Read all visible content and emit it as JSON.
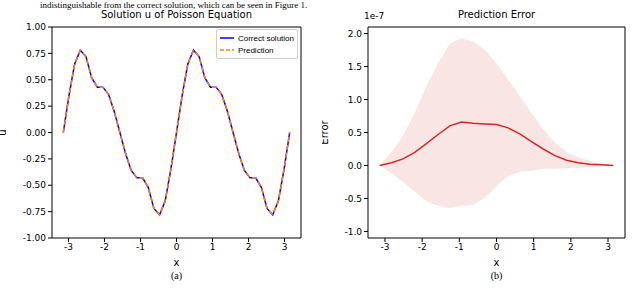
{
  "caption": "indistinguishable from the correct solution, which can be seen in Figure 1.",
  "chart_data": [
    {
      "type": "line",
      "title": "Solution u of Poisson Equation",
      "panel_label": "(a)",
      "x_label": "x",
      "y_label": "u",
      "x": [
        -3.142,
        -2.985,
        -2.827,
        -2.67,
        -2.513,
        -2.356,
        -2.199,
        -2.042,
        -1.885,
        -1.728,
        -1.571,
        -1.414,
        -1.257,
        -1.1,
        -0.942,
        -0.785,
        -0.628,
        -0.471,
        -0.314,
        -0.157,
        0,
        0.157,
        0.314,
        0.471,
        0.628,
        0.785,
        0.942,
        1.1,
        1.257,
        1.414,
        1.571,
        1.728,
        1.885,
        2.042,
        2.199,
        2.356,
        2.513,
        2.67,
        2.827,
        2.985,
        3.142
      ],
      "series": [
        {
          "name": "Correct solution",
          "color": "#0000ff",
          "line_style": "solid",
          "values": [
            0,
            0.35,
            0.65,
            0.78,
            0.72,
            0.52,
            0.43,
            0.43,
            0.36,
            0.2,
            0,
            -0.2,
            -0.36,
            -0.43,
            -0.43,
            -0.52,
            -0.72,
            -0.78,
            -0.65,
            -0.35,
            0,
            0.35,
            0.65,
            0.78,
            0.72,
            0.52,
            0.43,
            0.43,
            0.36,
            0.2,
            0,
            -0.2,
            -0.36,
            -0.43,
            -0.43,
            -0.52,
            -0.72,
            -0.78,
            -0.65,
            -0.35,
            0
          ]
        },
        {
          "name": "Prediction",
          "color": "#ff7f0e",
          "line_style": "dashed",
          "values": [
            0,
            0.35,
            0.65,
            0.78,
            0.72,
            0.52,
            0.43,
            0.43,
            0.36,
            0.2,
            0,
            -0.2,
            -0.36,
            -0.43,
            -0.43,
            -0.52,
            -0.72,
            -0.78,
            -0.65,
            -0.35,
            0,
            0.35,
            0.65,
            0.78,
            0.72,
            0.52,
            0.43,
            0.43,
            0.36,
            0.2,
            0,
            -0.2,
            -0.36,
            -0.43,
            -0.43,
            -0.52,
            -0.72,
            -0.78,
            -0.65,
            -0.35,
            0
          ]
        }
      ],
      "xlim": [
        -3.456,
        3.456
      ],
      "xticks": [
        -3,
        -2,
        -1,
        0,
        1,
        2,
        3
      ],
      "ylim": [
        -1,
        1
      ],
      "yticks": [
        {
          "value": -1,
          "label": "-1.00"
        },
        {
          "value": -0.75,
          "label": "-0.75"
        },
        {
          "value": -0.5,
          "label": "-0.50"
        },
        {
          "value": -0.25,
          "label": "-0.25"
        },
        {
          "value": 0,
          "label": "0.00"
        },
        {
          "value": 0.25,
          "label": "0.25"
        },
        {
          "value": 0.5,
          "label": "0.50"
        },
        {
          "value": 0.75,
          "label": "0.75"
        },
        {
          "value": 1,
          "label": "1.00"
        }
      ],
      "legend": "upper right",
      "grid": false
    },
    {
      "type": "line",
      "title": "Prediction Error",
      "panel_label": "(b)",
      "x_label": "x",
      "y_label": "Error",
      "y_offset_label": "1e-7",
      "x": [
        -3.142,
        -2.827,
        -2.513,
        -2.199,
        -1.885,
        -1.571,
        -1.257,
        -0.942,
        -0.628,
        -0.314,
        0,
        0.314,
        0.628,
        0.942,
        1.257,
        1.571,
        1.885,
        2.199,
        2.513,
        2.827,
        3.142
      ],
      "values": [
        0,
        0.04,
        0.1,
        0.2,
        0.33,
        0.47,
        0.6,
        0.66,
        0.64,
        0.63,
        0.62,
        0.57,
        0.48,
        0.36,
        0.25,
        0.15,
        0.08,
        0.04,
        0.02,
        0.01,
        0
      ],
      "color": "#d62728",
      "band": {
        "lower": [
          0,
          -0.12,
          -0.25,
          -0.4,
          -0.54,
          -0.61,
          -0.65,
          -0.61,
          -0.6,
          -0.49,
          -0.31,
          -0.16,
          -0.09,
          -0.08,
          -0.05,
          -0.05,
          -0.04,
          -0.04,
          -0.03,
          -0.01,
          0
        ],
        "upper": [
          0,
          0.2,
          0.45,
          0.8,
          1.2,
          1.55,
          1.85,
          1.93,
          1.88,
          1.75,
          1.55,
          1.3,
          1.05,
          0.8,
          0.55,
          0.35,
          0.2,
          0.12,
          0.07,
          0.03,
          0
        ]
      },
      "xlim": [
        -3.456,
        3.456
      ],
      "xticks": [
        -3,
        -2,
        -1,
        0,
        1,
        2,
        3
      ],
      "ylim": [
        -1.1,
        2.1
      ],
      "yticks": [
        {
          "value": -1,
          "label": "-1.0"
        },
        {
          "value": -0.5,
          "label": "-0.5"
        },
        {
          "value": 0,
          "label": "0.0"
        },
        {
          "value": 0.5,
          "label": "0.5"
        },
        {
          "value": 1,
          "label": "1.0"
        },
        {
          "value": 1.5,
          "label": "1.5"
        },
        {
          "value": 2,
          "label": "2.0"
        }
      ],
      "grid": false
    }
  ]
}
